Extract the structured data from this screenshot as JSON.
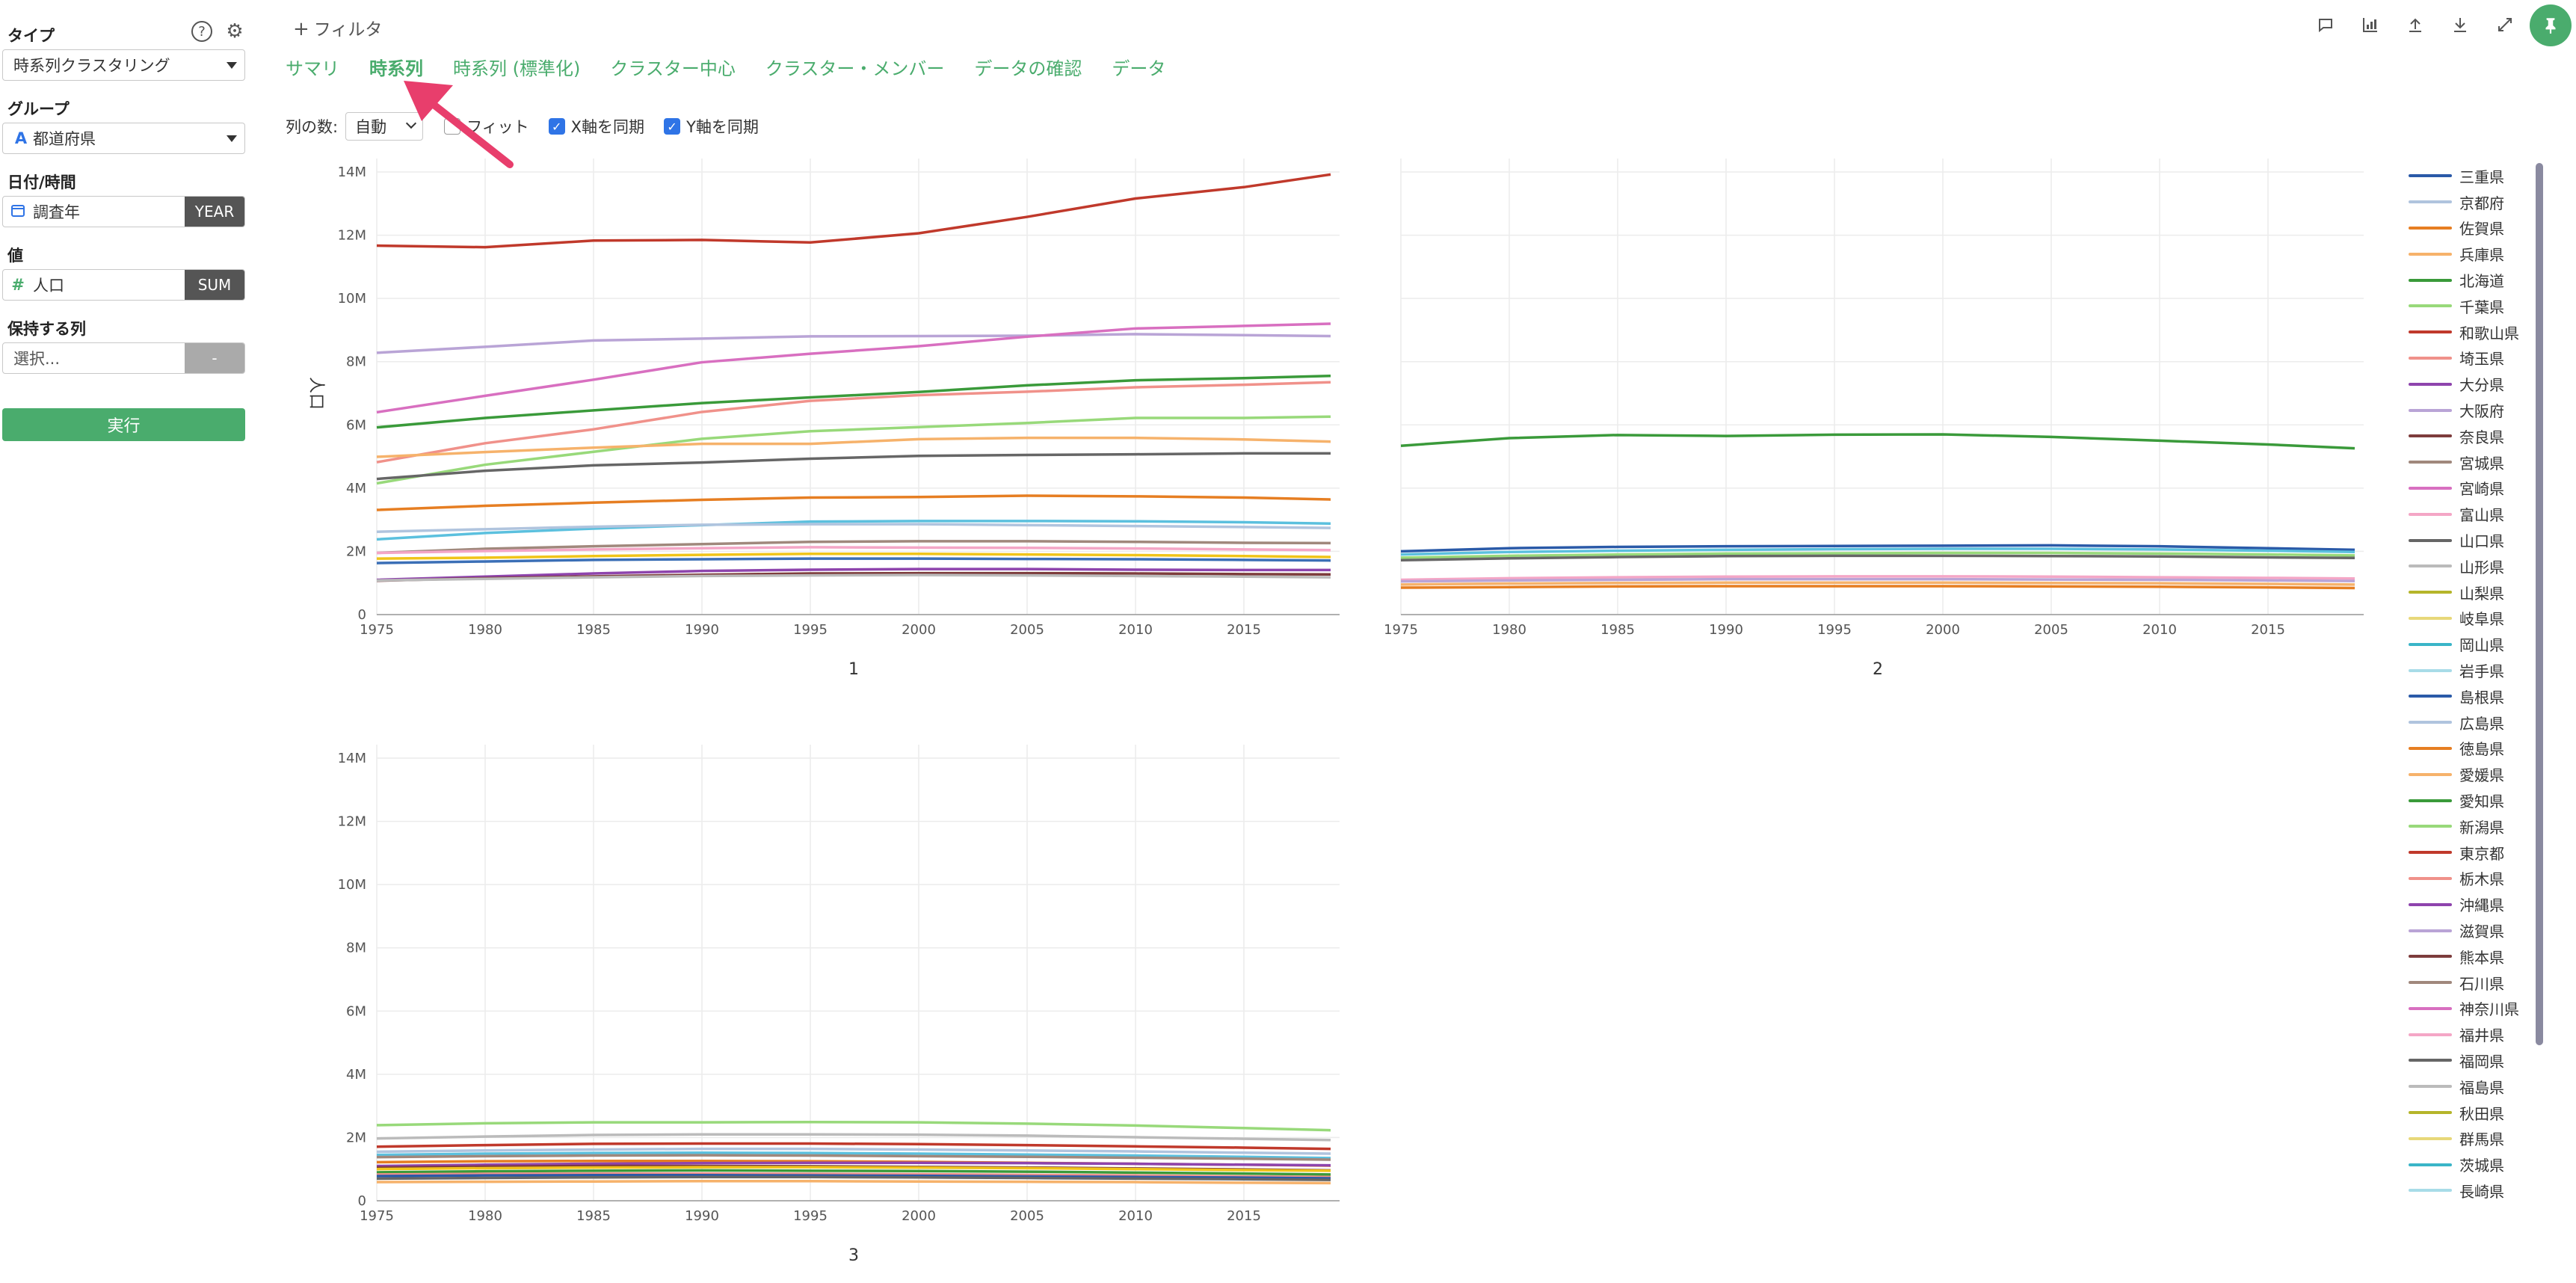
{
  "left_panel": {
    "type_label": "タイプ",
    "type_value": "時系列クラスタリング",
    "group_label": "グループ",
    "group_value": "都道府県",
    "group_icon": "A",
    "datetime_label": "日付/時間",
    "datetime_value": "調査年",
    "datetime_unit": "YEAR",
    "value_label": "値",
    "value_value": "人口",
    "value_icon": "#",
    "value_agg": "SUM",
    "keep_label": "保持する列",
    "keep_placeholder": "選択...",
    "keep_badge": "-",
    "run_label": "実行",
    "help_icon": "?"
  },
  "header": {
    "filter_label": "フィルタ",
    "tabs": [
      {
        "label": "サマリ"
      },
      {
        "label": "時系列"
      },
      {
        "label": "時系列 (標準化)"
      },
      {
        "label": "クラスター中心"
      },
      {
        "label": "クラスター・メンバー"
      },
      {
        "label": "データの確認"
      },
      {
        "label": "データ"
      }
    ],
    "active_tab": 1,
    "columns_label": "列の数:",
    "columns_value": "自動",
    "fit_label": "フィット",
    "sync_x_label": "X軸を同期",
    "sync_y_label": "Y軸を同期",
    "pin_icon": "pin-icon"
  },
  "chart_data": [
    {
      "type": "line",
      "title": "1",
      "ylabel": "人口",
      "x": [
        1975,
        1980,
        1985,
        1990,
        1995,
        2000,
        2005,
        2010,
        2015,
        2019
      ],
      "ylim": [
        0,
        14000000
      ],
      "yticks": [
        "0",
        "2M",
        "4M",
        "6M",
        "8M",
        "10M",
        "12M",
        "14M"
      ],
      "xticks": [
        "1975",
        "1980",
        "1985",
        "1990",
        "1995",
        "2000",
        "2005",
        "2010",
        "2015"
      ],
      "series": [
        {
          "color": "#c0392b",
          "values": [
            11670000,
            11620000,
            11830000,
            11850000,
            11770000,
            12060000,
            12580000,
            13160000,
            13520000,
            13920000
          ]
        },
        {
          "color": "#b9a4d6",
          "values": [
            8280000,
            8470000,
            8670000,
            8730000,
            8800000,
            8810000,
            8820000,
            8870000,
            8840000,
            8810000
          ]
        },
        {
          "color": "#d86fc0",
          "values": [
            6400000,
            6920000,
            7430000,
            7980000,
            8250000,
            8490000,
            8790000,
            9050000,
            9130000,
            9200000
          ]
        },
        {
          "color": "#3a9a3a",
          "values": [
            5920000,
            6220000,
            6460000,
            6690000,
            6870000,
            7040000,
            7250000,
            7410000,
            7480000,
            7550000
          ]
        },
        {
          "color": "#f0918a",
          "values": [
            4820000,
            5420000,
            5860000,
            6410000,
            6760000,
            6940000,
            7050000,
            7190000,
            7270000,
            7350000
          ]
        },
        {
          "color": "#98d97a",
          "values": [
            4150000,
            4740000,
            5150000,
            5560000,
            5800000,
            5930000,
            6060000,
            6220000,
            6220000,
            6260000
          ]
        },
        {
          "color": "#f6b26b",
          "values": [
            4990000,
            5140000,
            5280000,
            5400000,
            5400000,
            5550000,
            5590000,
            5590000,
            5540000,
            5470000
          ]
        },
        {
          "color": "#666666",
          "values": [
            4290000,
            4550000,
            4720000,
            4810000,
            4930000,
            5020000,
            5050000,
            5070000,
            5100000,
            5100000
          ]
        },
        {
          "color": "#e67e22",
          "values": [
            3310000,
            3440000,
            3540000,
            3630000,
            3700000,
            3720000,
            3760000,
            3740000,
            3700000,
            3640000
          ]
        },
        {
          "color": "#5bc0de",
          "values": [
            2380000,
            2580000,
            2720000,
            2830000,
            2940000,
            2960000,
            2960000,
            2950000,
            2920000,
            2880000
          ]
        },
        {
          "color": "#b0c4de",
          "values": [
            2620000,
            2700000,
            2780000,
            2840000,
            2860000,
            2860000,
            2830000,
            2800000,
            2770000,
            2740000
          ]
        },
        {
          "color": "#a0887c",
          "values": [
            1950000,
            2080000,
            2160000,
            2230000,
            2300000,
            2320000,
            2320000,
            2300000,
            2270000,
            2260000
          ]
        },
        {
          "color": "#f4a6c6",
          "values": [
            1950000,
            2010000,
            2060000,
            2100000,
            2130000,
            2120000,
            2110000,
            2090000,
            2060000,
            2040000
          ]
        },
        {
          "color": "#f0c419",
          "values": [
            1770000,
            1800000,
            1850000,
            1890000,
            1920000,
            1920000,
            1900000,
            1880000,
            1850000,
            1820000
          ]
        },
        {
          "color": "#3b6fb6",
          "values": [
            1630000,
            1680000,
            1730000,
            1750000,
            1770000,
            1770000,
            1760000,
            1750000,
            1730000,
            1710000
          ]
        },
        {
          "color": "#8e44ad",
          "values": [
            1100000,
            1200000,
            1300000,
            1380000,
            1420000,
            1440000,
            1440000,
            1420000,
            1410000,
            1410000
          ]
        },
        {
          "color": "#7d3c3c",
          "values": [
            1070000,
            1150000,
            1210000,
            1260000,
            1300000,
            1310000,
            1310000,
            1300000,
            1280000,
            1270000
          ]
        },
        {
          "color": "#bbbbbb",
          "values": [
            1080000,
            1130000,
            1180000,
            1220000,
            1240000,
            1250000,
            1240000,
            1220000,
            1200000,
            1180000
          ]
        }
      ]
    },
    {
      "type": "line",
      "title": "2",
      "x": [
        1975,
        1980,
        1985,
        1990,
        1995,
        2000,
        2005,
        2010,
        2015,
        2019
      ],
      "ylim": [
        0,
        14000000
      ],
      "xticks": [
        "1975",
        "1980",
        "1985",
        "1990",
        "1995",
        "2000",
        "2005",
        "2010",
        "2015"
      ],
      "series": [
        {
          "color": "#3a9a3a",
          "values": [
            5340000,
            5580000,
            5680000,
            5650000,
            5690000,
            5700000,
            5620000,
            5500000,
            5380000,
            5260000
          ]
        },
        {
          "color": "#2a5aa8",
          "values": [
            2000000,
            2100000,
            2140000,
            2160000,
            2170000,
            2180000,
            2190000,
            2160000,
            2100000,
            2050000
          ]
        },
        {
          "color": "#5bc0de",
          "values": [
            1900000,
            1980000,
            2020000,
            2050000,
            2070000,
            2080000,
            2080000,
            2060000,
            2020000,
            1980000
          ]
        },
        {
          "color": "#98d97a",
          "values": [
            1800000,
            1860000,
            1900000,
            1930000,
            1940000,
            1950000,
            1950000,
            1930000,
            1900000,
            1870000
          ]
        },
        {
          "color": "#666666",
          "values": [
            1720000,
            1780000,
            1820000,
            1850000,
            1860000,
            1860000,
            1850000,
            1840000,
            1810000,
            1790000
          ]
        },
        {
          "color": "#f4a6c6",
          "values": [
            1100000,
            1150000,
            1180000,
            1200000,
            1210000,
            1210000,
            1200000,
            1180000,
            1160000,
            1140000
          ]
        },
        {
          "color": "#b9a4d6",
          "values": [
            1050000,
            1080000,
            1100000,
            1120000,
            1120000,
            1120000,
            1110000,
            1100000,
            1080000,
            1060000
          ]
        },
        {
          "color": "#f6b26b",
          "values": [
            950000,
            980000,
            1000000,
            1010000,
            1010000,
            1010000,
            1000000,
            990000,
            970000,
            950000
          ]
        },
        {
          "color": "#e67e22",
          "values": [
            850000,
            870000,
            890000,
            900000,
            900000,
            900000,
            890000,
            880000,
            860000,
            840000
          ]
        }
      ]
    },
    {
      "type": "line",
      "title": "3",
      "x": [
        1975,
        1980,
        1985,
        1990,
        1995,
        2000,
        2005,
        2010,
        2015,
        2019
      ],
      "ylim": [
        0,
        14000000
      ],
      "yticks": [
        "0",
        "2M",
        "4M",
        "6M",
        "8M",
        "10M",
        "12M",
        "14M"
      ],
      "xticks": [
        "1975",
        "1980",
        "1985",
        "1990",
        "1995",
        "2000",
        "2005",
        "2010",
        "2015"
      ],
      "series": [
        {
          "color": "#98d97a",
          "values": [
            2390000,
            2450000,
            2480000,
            2480000,
            2490000,
            2480000,
            2440000,
            2380000,
            2300000,
            2230000
          ]
        },
        {
          "color": "#bbbbbb",
          "values": [
            1970000,
            2030000,
            2080000,
            2100000,
            2100000,
            2090000,
            2060000,
            2010000,
            1960000,
            1920000
          ]
        },
        {
          "color": "#c0392b",
          "values": [
            1710000,
            1760000,
            1800000,
            1810000,
            1810000,
            1790000,
            1760000,
            1720000,
            1680000,
            1640000
          ]
        },
        {
          "color": "#b0c4de",
          "values": [
            1550000,
            1590000,
            1620000,
            1640000,
            1640000,
            1620000,
            1590000,
            1560000,
            1520000,
            1490000
          ]
        },
        {
          "color": "#5bc0de",
          "values": [
            1450000,
            1490000,
            1510000,
            1520000,
            1510000,
            1490000,
            1460000,
            1430000,
            1390000,
            1350000
          ]
        },
        {
          "color": "#a0887c",
          "values": [
            1380000,
            1410000,
            1430000,
            1440000,
            1430000,
            1410000,
            1390000,
            1360000,
            1330000,
            1300000
          ]
        },
        {
          "color": "#e67e22",
          "values": [
            1220000,
            1250000,
            1260000,
            1260000,
            1250000,
            1230000,
            1200000,
            1170000,
            1140000,
            1110000
          ]
        },
        {
          "color": "#8e44ad",
          "values": [
            1100000,
            1140000,
            1170000,
            1190000,
            1200000,
            1200000,
            1190000,
            1170000,
            1140000,
            1120000
          ]
        },
        {
          "color": "#7d3c3c",
          "values": [
            1050000,
            1080000,
            1100000,
            1100000,
            1090000,
            1070000,
            1050000,
            1020000,
            990000,
            960000
          ]
        },
        {
          "color": "#f0c419",
          "values": [
            1000000,
            1030000,
            1050000,
            1060000,
            1060000,
            1050000,
            1030000,
            1000000,
            970000,
            950000
          ]
        },
        {
          "color": "#3a9a3a",
          "values": [
            900000,
            930000,
            950000,
            960000,
            950000,
            940000,
            920000,
            890000,
            860000,
            830000
          ]
        },
        {
          "color": "#f0918a",
          "values": [
            830000,
            850000,
            860000,
            860000,
            850000,
            840000,
            820000,
            800000,
            770000,
            750000
          ]
        },
        {
          "color": "#2a5aa8",
          "values": [
            780000,
            800000,
            810000,
            810000,
            800000,
            790000,
            770000,
            750000,
            730000,
            710000
          ]
        },
        {
          "color": "#666666",
          "values": [
            700000,
            720000,
            740000,
            750000,
            750000,
            740000,
            720000,
            700000,
            680000,
            660000
          ]
        },
        {
          "color": "#f6b26b",
          "values": [
            590000,
            600000,
            610000,
            620000,
            620000,
            610000,
            600000,
            590000,
            570000,
            560000
          ]
        }
      ]
    }
  ],
  "legend": [
    {
      "label": "三重県",
      "color": "#2a5aa8"
    },
    {
      "label": "京都府",
      "color": "#b0c4de"
    },
    {
      "label": "佐賀県",
      "color": "#e67e22"
    },
    {
      "label": "兵庫県",
      "color": "#f6b26b"
    },
    {
      "label": "北海道",
      "color": "#3a9a3a"
    },
    {
      "label": "千葉県",
      "color": "#98d97a"
    },
    {
      "label": "和歌山県",
      "color": "#c0392b"
    },
    {
      "label": "埼玉県",
      "color": "#f0918a"
    },
    {
      "label": "大分県",
      "color": "#8e44ad"
    },
    {
      "label": "大阪府",
      "color": "#b9a4d6"
    },
    {
      "label": "奈良県",
      "color": "#7d3c3c"
    },
    {
      "label": "宮城県",
      "color": "#a0887c"
    },
    {
      "label": "宮崎県",
      "color": "#d86fc0"
    },
    {
      "label": "富山県",
      "color": "#f4a6c6"
    },
    {
      "label": "山口県",
      "color": "#666666"
    },
    {
      "label": "山形県",
      "color": "#bbbbbb"
    },
    {
      "label": "山梨県",
      "color": "#b5b52a"
    },
    {
      "label": "岐阜県",
      "color": "#e8d87a"
    },
    {
      "label": "岡山県",
      "color": "#3ab5c8"
    },
    {
      "label": "岩手県",
      "color": "#a8dce8"
    },
    {
      "label": "島根県",
      "color": "#2a5aa8"
    },
    {
      "label": "広島県",
      "color": "#b0c4de"
    },
    {
      "label": "徳島県",
      "color": "#e67e22"
    },
    {
      "label": "愛媛県",
      "color": "#f6b26b"
    },
    {
      "label": "愛知県",
      "color": "#3a9a3a"
    },
    {
      "label": "新潟県",
      "color": "#98d97a"
    },
    {
      "label": "東京都",
      "color": "#c0392b"
    },
    {
      "label": "栃木県",
      "color": "#f0918a"
    },
    {
      "label": "沖縄県",
      "color": "#8e44ad"
    },
    {
      "label": "滋賀県",
      "color": "#b9a4d6"
    },
    {
      "label": "熊本県",
      "color": "#7d3c3c"
    },
    {
      "label": "石川県",
      "color": "#a0887c"
    },
    {
      "label": "神奈川県",
      "color": "#d86fc0"
    },
    {
      "label": "福井県",
      "color": "#f4a6c6"
    },
    {
      "label": "福岡県",
      "color": "#666666"
    },
    {
      "label": "福島県",
      "color": "#bbbbbb"
    },
    {
      "label": "秋田県",
      "color": "#b5b52a"
    },
    {
      "label": "群馬県",
      "color": "#e8d87a"
    },
    {
      "label": "茨城県",
      "color": "#3ab5c8"
    },
    {
      "label": "長崎県",
      "color": "#a8dce8"
    }
  ]
}
